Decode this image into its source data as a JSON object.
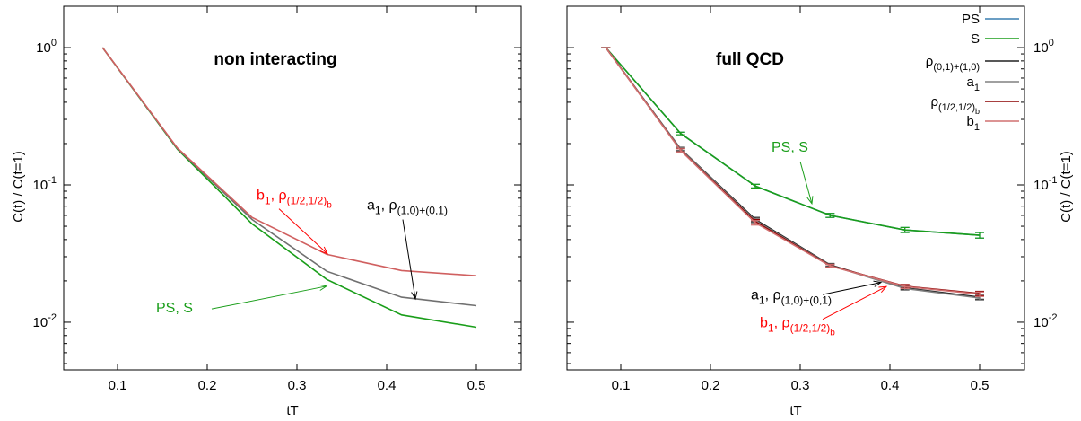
{
  "chart_data": [
    {
      "type": "line",
      "title": "non interacting",
      "xlabel": "tT",
      "ylabel": "C(t) / C(t=1)",
      "yscale": "log",
      "xlim": [
        0.04,
        0.55
      ],
      "ylim": [
        0.0045,
        2.0
      ],
      "xticks": [
        "0.1",
        "0.2",
        "0.3",
        "0.4",
        "0.5"
      ],
      "yticks": [
        {
          "base": "10",
          "exp": "0"
        },
        {
          "base": "10",
          "exp": "-1"
        },
        {
          "base": "10",
          "exp": "-2"
        }
      ],
      "x": [
        0.0833,
        0.1667,
        0.25,
        0.3333,
        0.4167,
        0.5
      ],
      "series": [
        {
          "key": "ps_s",
          "color": "#1a9e1a",
          "values": [
            1.0,
            0.182,
            0.052,
            0.0205,
            0.0113,
            0.0092
          ]
        },
        {
          "key": "a1",
          "color": "#707070",
          "values": [
            1.0,
            0.184,
            0.056,
            0.0235,
            0.0152,
            0.0132
          ]
        },
        {
          "key": "b1",
          "color": "#d06060",
          "values": [
            1.0,
            0.186,
            0.058,
            0.0312,
            0.0238,
            0.0218
          ]
        }
      ],
      "annotations": [
        {
          "key": "b1_annot",
          "color": "#ff0000",
          "parts": [
            {
              "t": "b",
              "s": "normal"
            },
            {
              "t": "1",
              "s": "sub"
            },
            {
              "t": ", ρ",
              "s": "normal"
            },
            {
              "t": "(1/2,1/2)",
              "s": "sub"
            },
            {
              "t": "b",
              "s": "subsub"
            }
          ],
          "text_at": [
            0.255,
            0.078
          ],
          "arrow_from": [
            0.28,
            0.067
          ],
          "arrow_to": [
            0.334,
            0.0315
          ]
        },
        {
          "key": "a1_annot",
          "color": "#000000",
          "parts": [
            {
              "t": "a",
              "s": "normal"
            },
            {
              "t": "1",
              "s": "sub"
            },
            {
              "t": ", ρ",
              "s": "normal"
            },
            {
              "t": "(1,0)+(0,1)",
              "s": "sub"
            }
          ],
          "text_at": [
            0.378,
            0.066
          ],
          "arrow_from": [
            0.418,
            0.056
          ],
          "arrow_to": [
            0.432,
            0.0148
          ]
        },
        {
          "key": "ps_annot",
          "color": "#1a9e1a",
          "parts": [
            {
              "t": "PS, S",
              "s": "normal"
            }
          ],
          "text_at": [
            0.143,
            0.0118
          ],
          "arrow_from": [
            0.205,
            0.0125
          ],
          "arrow_to": [
            0.333,
            0.0183
          ]
        }
      ]
    },
    {
      "type": "line",
      "title": "full QCD",
      "xlabel": "tT",
      "ylabel": "C(t) / C(t=1)",
      "yscale": "log",
      "xlim": [
        0.04,
        0.55
      ],
      "ylim": [
        0.0045,
        2.0
      ],
      "xticks": [
        "0.1",
        "0.2",
        "0.3",
        "0.4",
        "0.5"
      ],
      "yticks": [
        {
          "base": "10",
          "exp": "0"
        },
        {
          "base": "10",
          "exp": "-1"
        },
        {
          "base": "10",
          "exp": "-2"
        }
      ],
      "x": [
        0.0833,
        0.1667,
        0.25,
        0.3333,
        0.4167,
        0.5
      ],
      "legend": [
        {
          "key": "ps",
          "color": "#3a7fb0",
          "parts": [
            {
              "t": "PS",
              "s": "normal"
            }
          ]
        },
        {
          "key": "s",
          "color": "#1a9e1a",
          "parts": [
            {
              "t": "S",
              "s": "normal"
            }
          ]
        },
        {
          "key": "rho0110",
          "color": "#202020",
          "parts": [
            {
              "t": "ρ",
              "s": "normal"
            },
            {
              "t": "(0,1)+(1,0)",
              "s": "sub"
            }
          ]
        },
        {
          "key": "a1",
          "color": "#808080",
          "parts": [
            {
              "t": "a",
              "s": "normal"
            },
            {
              "t": "1",
              "s": "sub"
            }
          ]
        },
        {
          "key": "rhohalf",
          "color": "#8b0000",
          "parts": [
            {
              "t": "ρ",
              "s": "normal"
            },
            {
              "t": "(1/2,1/2)",
              "s": "sub"
            },
            {
              "t": "b",
              "s": "subsub"
            }
          ]
        },
        {
          "key": "b1",
          "color": "#d07070",
          "parts": [
            {
              "t": "b",
              "s": "normal"
            },
            {
              "t": "1",
              "s": "sub"
            }
          ]
        }
      ],
      "series": [
        {
          "key": "ps",
          "color": "#3a7fb0",
          "values": [
            1.0,
            0.237,
            0.098,
            0.06,
            0.047,
            0.043
          ],
          "err": [
            0,
            0.005,
            0.003,
            0.002,
            0.002,
            0.002
          ]
        },
        {
          "key": "s",
          "color": "#1a9e1a",
          "values": [
            1.0,
            0.237,
            0.098,
            0.06,
            0.047,
            0.043
          ],
          "err": [
            0,
            0.005,
            0.003,
            0.002,
            0.002,
            0.002
          ]
        },
        {
          "key": "rho0110",
          "color": "#202020",
          "values": [
            1.0,
            0.183,
            0.056,
            0.0262,
            0.0178,
            0.0152
          ],
          "err": [
            0,
            0.005,
            0.002,
            0.0006,
            0.0005,
            0.0005
          ]
        },
        {
          "key": "a1",
          "color": "#808080",
          "values": [
            1.0,
            0.182,
            0.055,
            0.026,
            0.0176,
            0.015
          ],
          "err": [
            0,
            0.005,
            0.002,
            0.0006,
            0.0005,
            0.0005
          ]
        },
        {
          "key": "rhohalf",
          "color": "#8b0000",
          "values": [
            1.0,
            0.179,
            0.054,
            0.0258,
            0.0183,
            0.0162
          ],
          "err": [
            0,
            0.005,
            0.002,
            0.0006,
            0.0006,
            0.0006
          ]
        },
        {
          "key": "b1",
          "color": "#d07070",
          "values": [
            1.0,
            0.178,
            0.053,
            0.0257,
            0.0182,
            0.016
          ],
          "err": [
            0,
            0.005,
            0.002,
            0.0006,
            0.0006,
            0.0006
          ]
        }
      ],
      "annotations": [
        {
          "key": "ps_annot",
          "color": "#1a9e1a",
          "parts": [
            {
              "t": "PS, S",
              "s": "normal"
            }
          ],
          "text_at": [
            0.268,
            0.175
          ],
          "arrow_from": [
            0.3,
            0.148
          ],
          "arrow_to": [
            0.313,
            0.073
          ]
        },
        {
          "key": "a1_annot",
          "color": "#000000",
          "parts": [
            {
              "t": "a",
              "s": "normal"
            },
            {
              "t": "1",
              "s": "sub"
            },
            {
              "t": ", ρ",
              "s": "normal"
            },
            {
              "t": "(1,0)+(0,1)",
              "s": "sub"
            }
          ],
          "text_at": [
            0.245,
            0.0147
          ],
          "arrow_from": [
            0.325,
            0.0159
          ],
          "arrow_to": [
            0.39,
            0.0195
          ]
        },
        {
          "key": "b1_annot",
          "color": "#ff0000",
          "parts": [
            {
              "t": "b",
              "s": "normal"
            },
            {
              "t": "1",
              "s": "sub"
            },
            {
              "t": ", ρ",
              "s": "normal"
            },
            {
              "t": "(1/2,1/2)",
              "s": "sub"
            },
            {
              "t": "b",
              "s": "subsub"
            }
          ],
          "text_at": [
            0.255,
            0.0092
          ],
          "arrow_from": [
            0.325,
            0.0105
          ],
          "arrow_to": [
            0.396,
            0.0182
          ]
        }
      ]
    }
  ]
}
